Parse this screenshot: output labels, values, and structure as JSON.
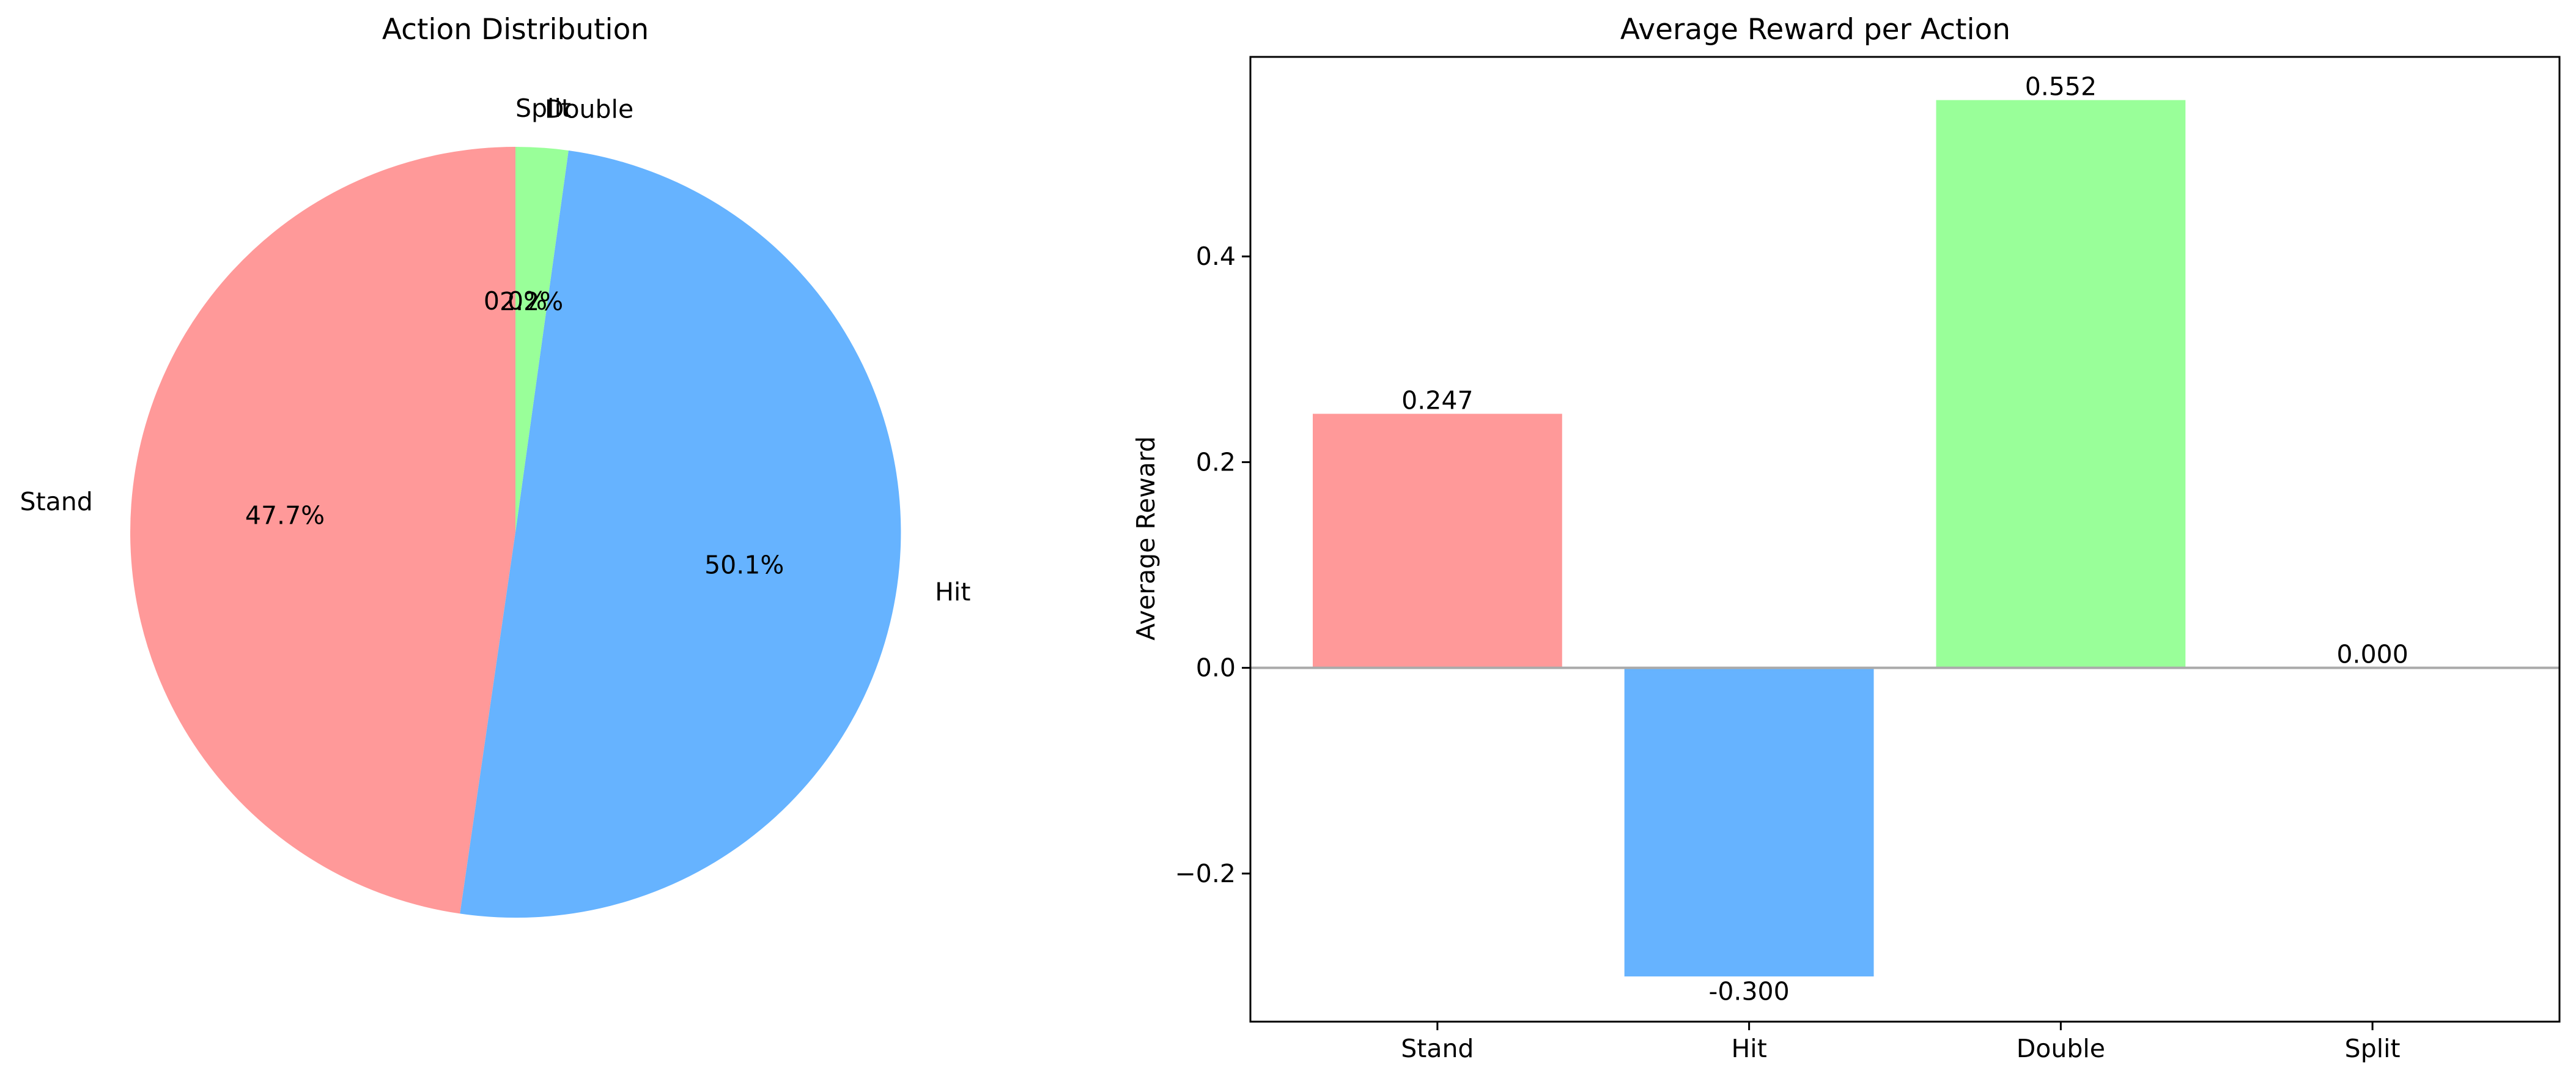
{
  "chart_data": [
    {
      "type": "pie",
      "title": "Action Distribution",
      "labels": [
        "Stand",
        "Hit",
        "Double",
        "Split"
      ],
      "values": [
        47.7,
        50.1,
        2.2,
        0.0
      ],
      "pct_labels": [
        "47.7%",
        "50.1%",
        "2.2%",
        "0.0%"
      ],
      "colors": [
        "#ff9999",
        "#66b3ff",
        "#99ff99",
        "#ffcc99"
      ],
      "start_angle_deg": 90,
      "direction": "counterclockwise"
    },
    {
      "type": "bar",
      "title": "Average Reward per Action",
      "categories": [
        "Stand",
        "Hit",
        "Double",
        "Split"
      ],
      "values": [
        0.247,
        -0.3,
        0.552,
        0.0
      ],
      "value_labels": [
        "0.247",
        "-0.300",
        "0.552",
        "0.000"
      ],
      "colors": [
        "#ff9999",
        "#66b3ff",
        "#99ff99",
        "#ffcc99"
      ],
      "xlabel": "",
      "ylabel": "Average Reward",
      "ylim": [
        -0.344,
        0.594
      ],
      "yticks": [
        -0.2,
        0.0,
        0.2,
        0.4
      ],
      "ytick_labels": [
        "−0.2",
        "0.0",
        "0.2",
        "0.4"
      ],
      "zero_line": true,
      "zero_line_color": "#aaaaaa",
      "grid": false
    }
  ]
}
